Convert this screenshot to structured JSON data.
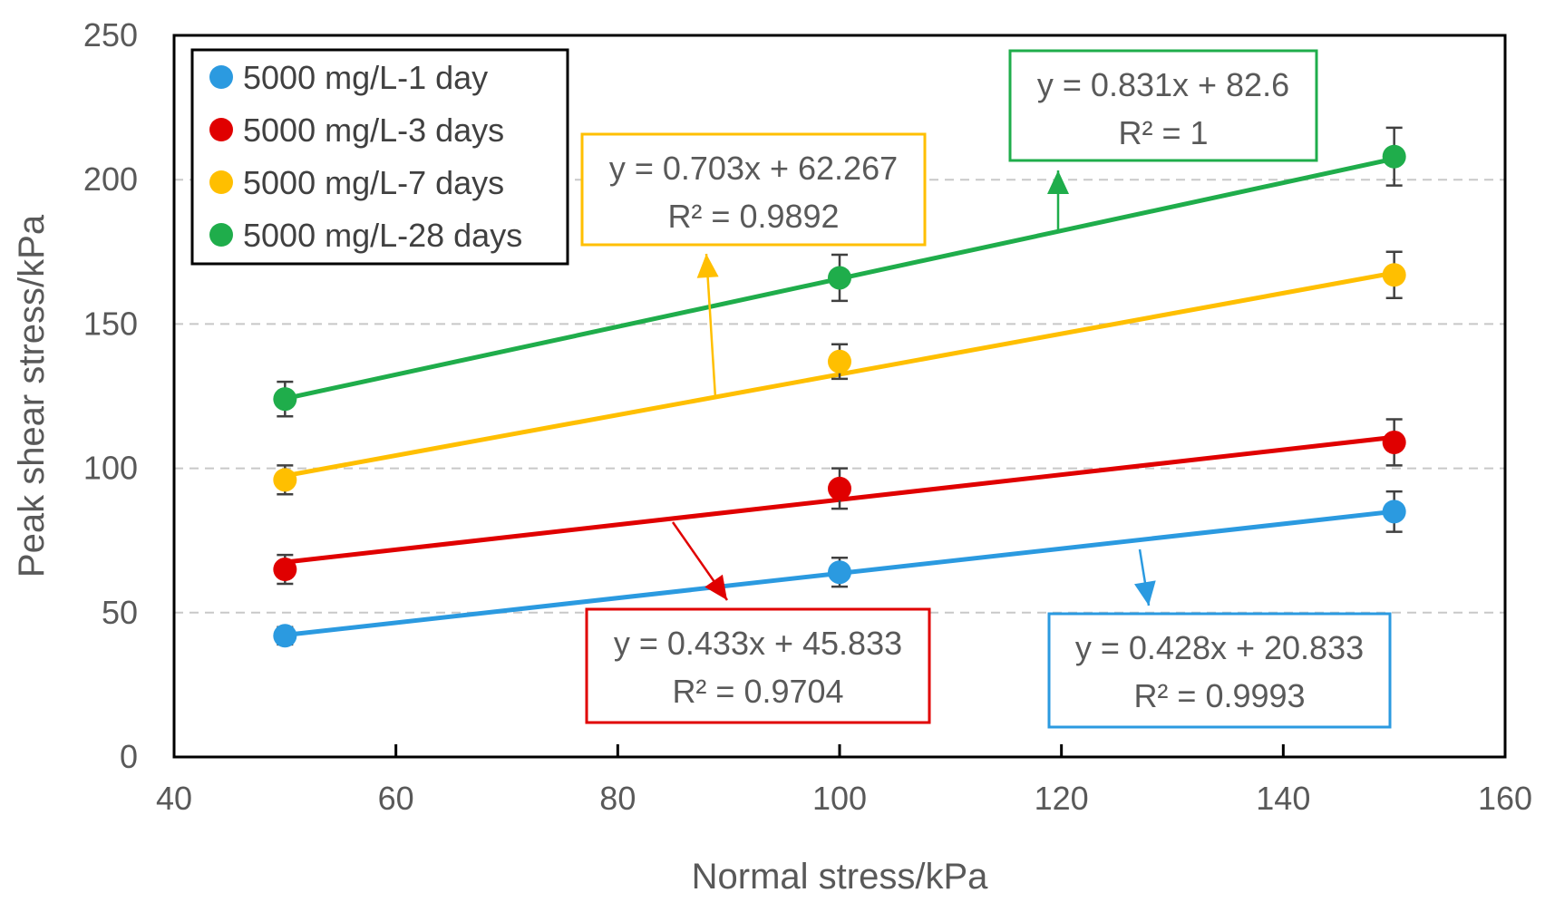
{
  "chart_data": {
    "type": "scatter",
    "xlabel": "Normal stress/kPa",
    "ylabel": "Peak shear stress/kPa",
    "xlim": [
      40,
      160
    ],
    "ylim": [
      0,
      250
    ],
    "xticks": [
      40,
      60,
      80,
      100,
      120,
      140,
      160
    ],
    "yticks": [
      0,
      50,
      100,
      150,
      200,
      250
    ],
    "grid": "horizontal dashed",
    "legend_position": "top-left",
    "series": [
      {
        "name": "5000 mg/L-1 day",
        "color": "#2b9ae0",
        "x": [
          50,
          100,
          150
        ],
        "y": [
          42,
          64,
          85
        ],
        "err": [
          3,
          5,
          7
        ],
        "fit": {
          "slope": 0.428,
          "intercept": 20.833
        },
        "equation": "y = 0.428x + 20.833",
        "r2": "R² = 0.9993"
      },
      {
        "name": "5000 mg/L-3 days",
        "color": "#e00000",
        "x": [
          50,
          100,
          150
        ],
        "y": [
          65,
          93,
          109
        ],
        "err": [
          5,
          7,
          8
        ],
        "fit": {
          "slope": 0.433,
          "intercept": 45.833
        },
        "equation": "y = 0.433x + 45.833",
        "r2": "R² = 0.9704"
      },
      {
        "name": "5000 mg/L-7 days",
        "color": "#ffbf00",
        "x": [
          50,
          100,
          150
        ],
        "y": [
          96,
          137,
          167
        ],
        "err": [
          5,
          6,
          8
        ],
        "fit": {
          "slope": 0.703,
          "intercept": 62.267
        },
        "equation": "y = 0.703x + 62.267",
        "r2": "R² = 0.9892"
      },
      {
        "name": "5000 mg/L-28 days",
        "color": "#1fad4b",
        "x": [
          50,
          100,
          150
        ],
        "y": [
          124,
          166,
          208
        ],
        "err": [
          6,
          8,
          10
        ],
        "fit": {
          "slope": 0.831,
          "intercept": 82.6
        },
        "equation": "y = 0.831x + 82.6",
        "r2": "R² = 1"
      }
    ]
  }
}
